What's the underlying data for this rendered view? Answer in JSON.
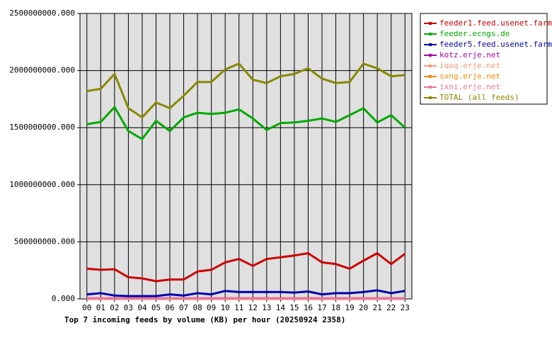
{
  "chart_data": {
    "type": "line",
    "title": "Top 7 incoming feeds by volume (KB) per hour (20250924 2358)",
    "categories": [
      "00",
      "01",
      "02",
      "03",
      "04",
      "05",
      "06",
      "07",
      "08",
      "09",
      "10",
      "11",
      "12",
      "13",
      "14",
      "15",
      "16",
      "17",
      "18",
      "19",
      "20",
      "21",
      "22",
      "23"
    ],
    "ylim": [
      0,
      2500000000
    ],
    "yticks": [
      {
        "value": 0,
        "label": "0.000"
      },
      {
        "value": 500000000,
        "label": "500000000.000"
      },
      {
        "value": 1000000000,
        "label": "1000000000.000"
      },
      {
        "value": 1500000000,
        "label": "1500000000.000"
      },
      {
        "value": 2000000000,
        "label": "2000000000.000"
      },
      {
        "value": 2500000000,
        "label": "2500000000.000"
      }
    ],
    "grid": true,
    "legend": "right",
    "series": [
      {
        "name": "feeder1.feed.usenet.farm",
        "color": "#cc0000",
        "values": [
          265000000,
          255000000,
          260000000,
          190000000,
          180000000,
          155000000,
          170000000,
          170000000,
          240000000,
          255000000,
          320000000,
          350000000,
          290000000,
          350000000,
          365000000,
          380000000,
          400000000,
          320000000,
          305000000,
          265000000,
          335000000,
          400000000,
          305000000,
          395000000
        ]
      },
      {
        "name": "feeder.ecngs.de",
        "color": "#00aa00",
        "values": [
          1530000000,
          1550000000,
          1680000000,
          1470000000,
          1400000000,
          1560000000,
          1470000000,
          1590000000,
          1630000000,
          1620000000,
          1630000000,
          1660000000,
          1580000000,
          1480000000,
          1540000000,
          1545000000,
          1560000000,
          1580000000,
          1550000000,
          1610000000,
          1670000000,
          1545000000,
          1610000000,
          1500000000
        ]
      },
      {
        "name": "feeder5.feed.usenet.farm",
        "color": "#0000aa",
        "values": [
          40000000,
          50000000,
          30000000,
          25000000,
          25000000,
          25000000,
          40000000,
          30000000,
          50000000,
          40000000,
          70000000,
          60000000,
          60000000,
          60000000,
          60000000,
          55000000,
          65000000,
          40000000,
          50000000,
          50000000,
          60000000,
          75000000,
          50000000,
          70000000
        ]
      },
      {
        "name": "kotz.erje.net",
        "color": "#aa00aa",
        "values": [
          5000000,
          5000000,
          5000000,
          5000000,
          5000000,
          5000000,
          5000000,
          5000000,
          5000000,
          5000000,
          5000000,
          5000000,
          5000000,
          5000000,
          5000000,
          5000000,
          5000000,
          5000000,
          5000000,
          5000000,
          5000000,
          5000000,
          5000000,
          5000000
        ]
      },
      {
        "name": "iqoq.erje.net",
        "color": "#ff9977",
        "values": [
          1000000,
          1000000,
          1000000,
          1000000,
          1000000,
          1000000,
          1000000,
          1000000,
          1000000,
          1000000,
          1000000,
          1000000,
          1000000,
          1000000,
          1000000,
          1000000,
          1000000,
          1000000,
          1000000,
          1000000,
          1000000,
          1000000,
          1000000,
          1000000
        ]
      },
      {
        "name": "sxng.erje.net",
        "color": "#ff8800",
        "values": [
          1000000,
          1000000,
          1000000,
          1000000,
          1000000,
          1000000,
          1000000,
          1000000,
          1000000,
          1000000,
          1000000,
          1000000,
          1000000,
          1000000,
          1000000,
          1000000,
          1000000,
          1000000,
          1000000,
          1000000,
          1000000,
          1000000,
          1000000,
          1000000
        ]
      },
      {
        "name": "ixni.erje.net",
        "color": "#ee7799",
        "values": [
          1000000,
          1000000,
          1000000,
          1000000,
          1000000,
          1000000,
          1000000,
          1000000,
          1000000,
          1000000,
          1000000,
          1000000,
          1000000,
          1000000,
          1000000,
          1000000,
          1000000,
          1000000,
          1000000,
          1000000,
          1000000,
          1000000,
          1000000,
          1000000
        ]
      },
      {
        "name": "TOTAL (all feeds)",
        "color": "#888800",
        "values": [
          1820000000,
          1840000000,
          1970000000,
          1670000000,
          1590000000,
          1720000000,
          1670000000,
          1780000000,
          1900000000,
          1900000000,
          2010000000,
          2060000000,
          1920000000,
          1890000000,
          1950000000,
          1970000000,
          2020000000,
          1930000000,
          1890000000,
          1900000000,
          2060000000,
          2020000000,
          1950000000,
          1960000000
        ]
      }
    ]
  }
}
